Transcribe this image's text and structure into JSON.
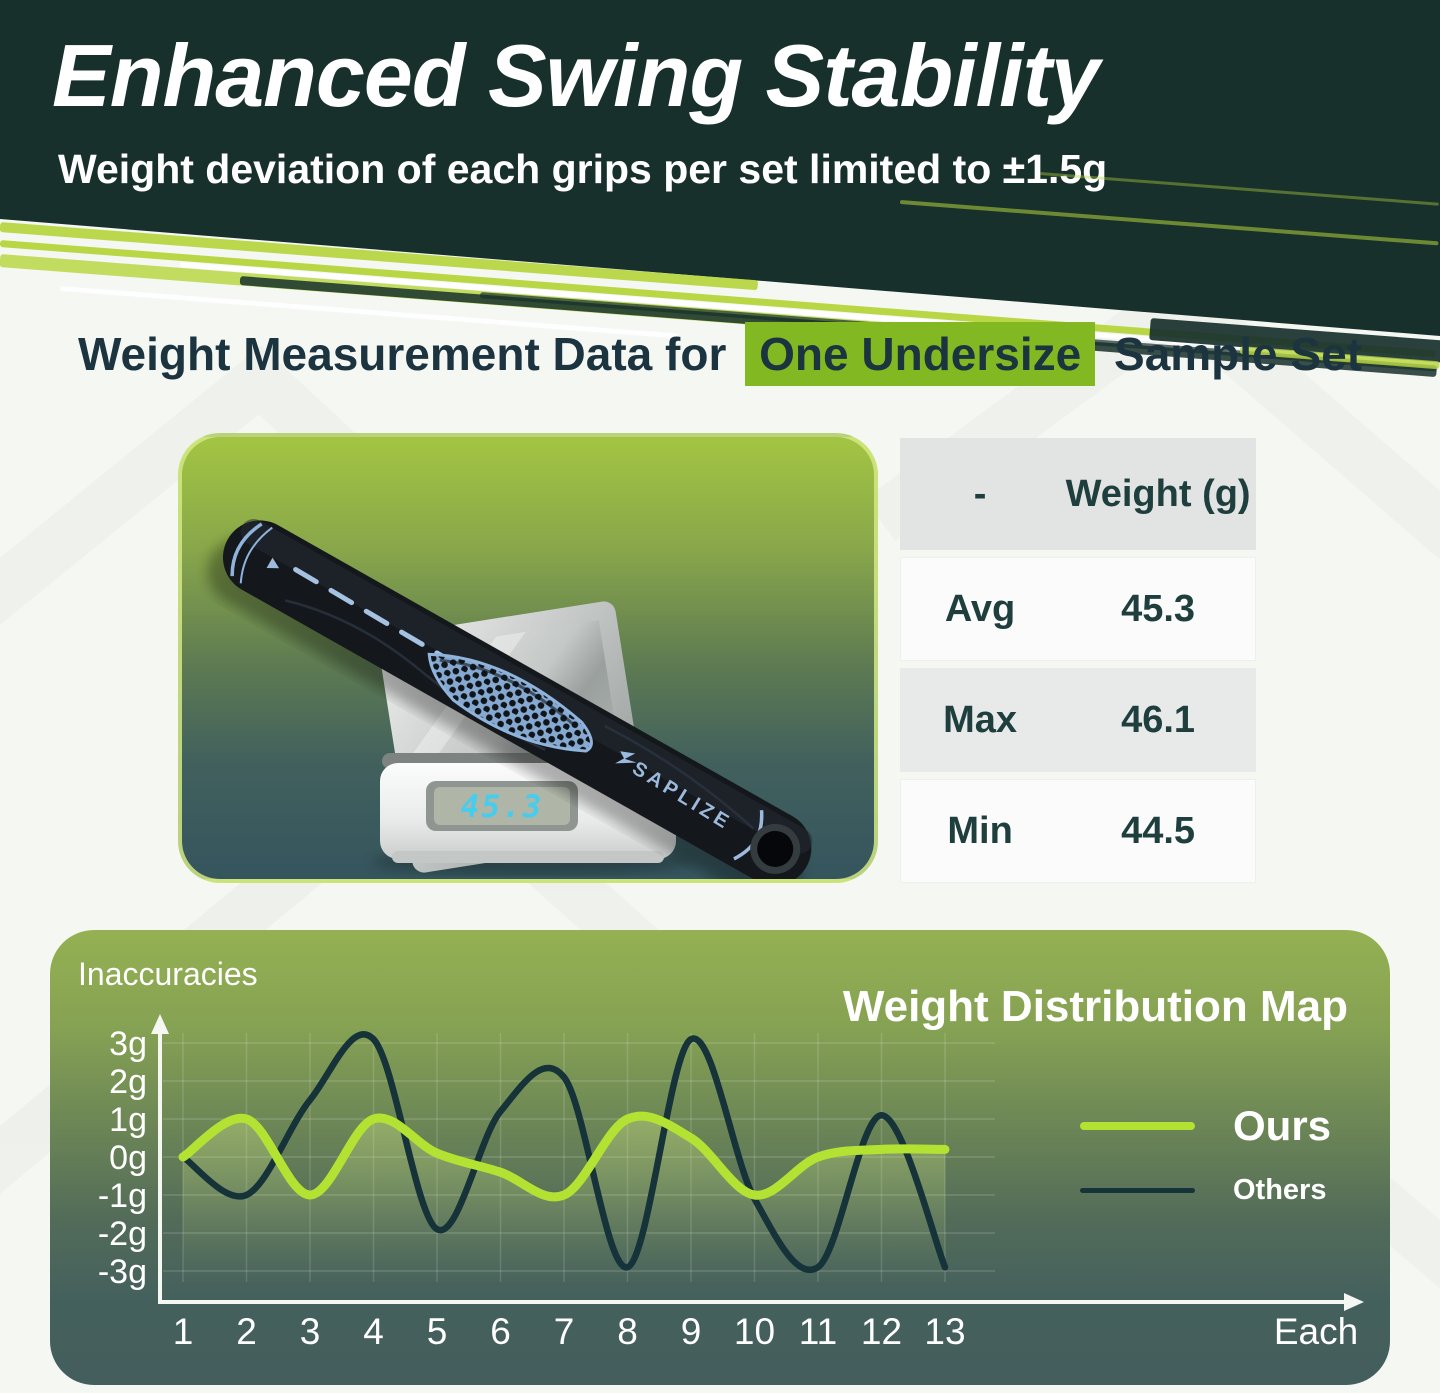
{
  "header": {
    "title": "Enhanced Swing Stability",
    "subtitle": "Weight deviation of each grips per set limited to ±1.5g",
    "bg_color": "#18302c",
    "accent_lime": "#b5d43b"
  },
  "section": {
    "title_prefix": "Weight Measurement Data for",
    "title_highlight": "One Undersize",
    "title_suffix": "Sample Set",
    "highlight_color": "#82b822"
  },
  "photo": {
    "lcd_value": "45.3",
    "lcd_color": "#46cdee",
    "brand": "SAPLIZE"
  },
  "table": {
    "columns": [
      "-",
      "Weight (g)"
    ],
    "rows": [
      {
        "label": "Avg",
        "value": "45.3"
      },
      {
        "label": "Max",
        "value": "46.1"
      },
      {
        "label": "Min",
        "value": "44.5"
      }
    ]
  },
  "chart": {
    "heading": "Weight Distribution Map",
    "axis_title": "Inaccuracies",
    "x_end_label": "Each"
  },
  "chart_data": {
    "type": "line",
    "title": "Weight Distribution Map",
    "ylabel": "Inaccuracies",
    "xlabel": "Each",
    "x": [
      1,
      2,
      3,
      4,
      5,
      6,
      7,
      8,
      9,
      10,
      11,
      12,
      13
    ],
    "series": [
      {
        "name": "Ours",
        "color": "#b4e233",
        "values": [
          0,
          1,
          -1,
          1,
          0.1,
          -0.4,
          -1,
          1,
          0.5,
          -1,
          0,
          0.2,
          0.2
        ]
      },
      {
        "name": "Others",
        "color": "#17333a",
        "values": [
          0,
          -1,
          1.5,
          3.1,
          -1.9,
          1.2,
          2.1,
          -2.9,
          3.1,
          -1.1,
          -2.9,
          1.1,
          -2.9
        ]
      }
    ],
    "ylim": [
      -3.5,
      3.5
    ],
    "yticks": [
      3,
      2,
      1,
      0,
      -1,
      -2,
      -3
    ],
    "ytick_labels": [
      "3g",
      "2g",
      "1g",
      "0g",
      "-1g",
      "-2g",
      "-3g"
    ],
    "grid": true,
    "legend_position": "right"
  }
}
